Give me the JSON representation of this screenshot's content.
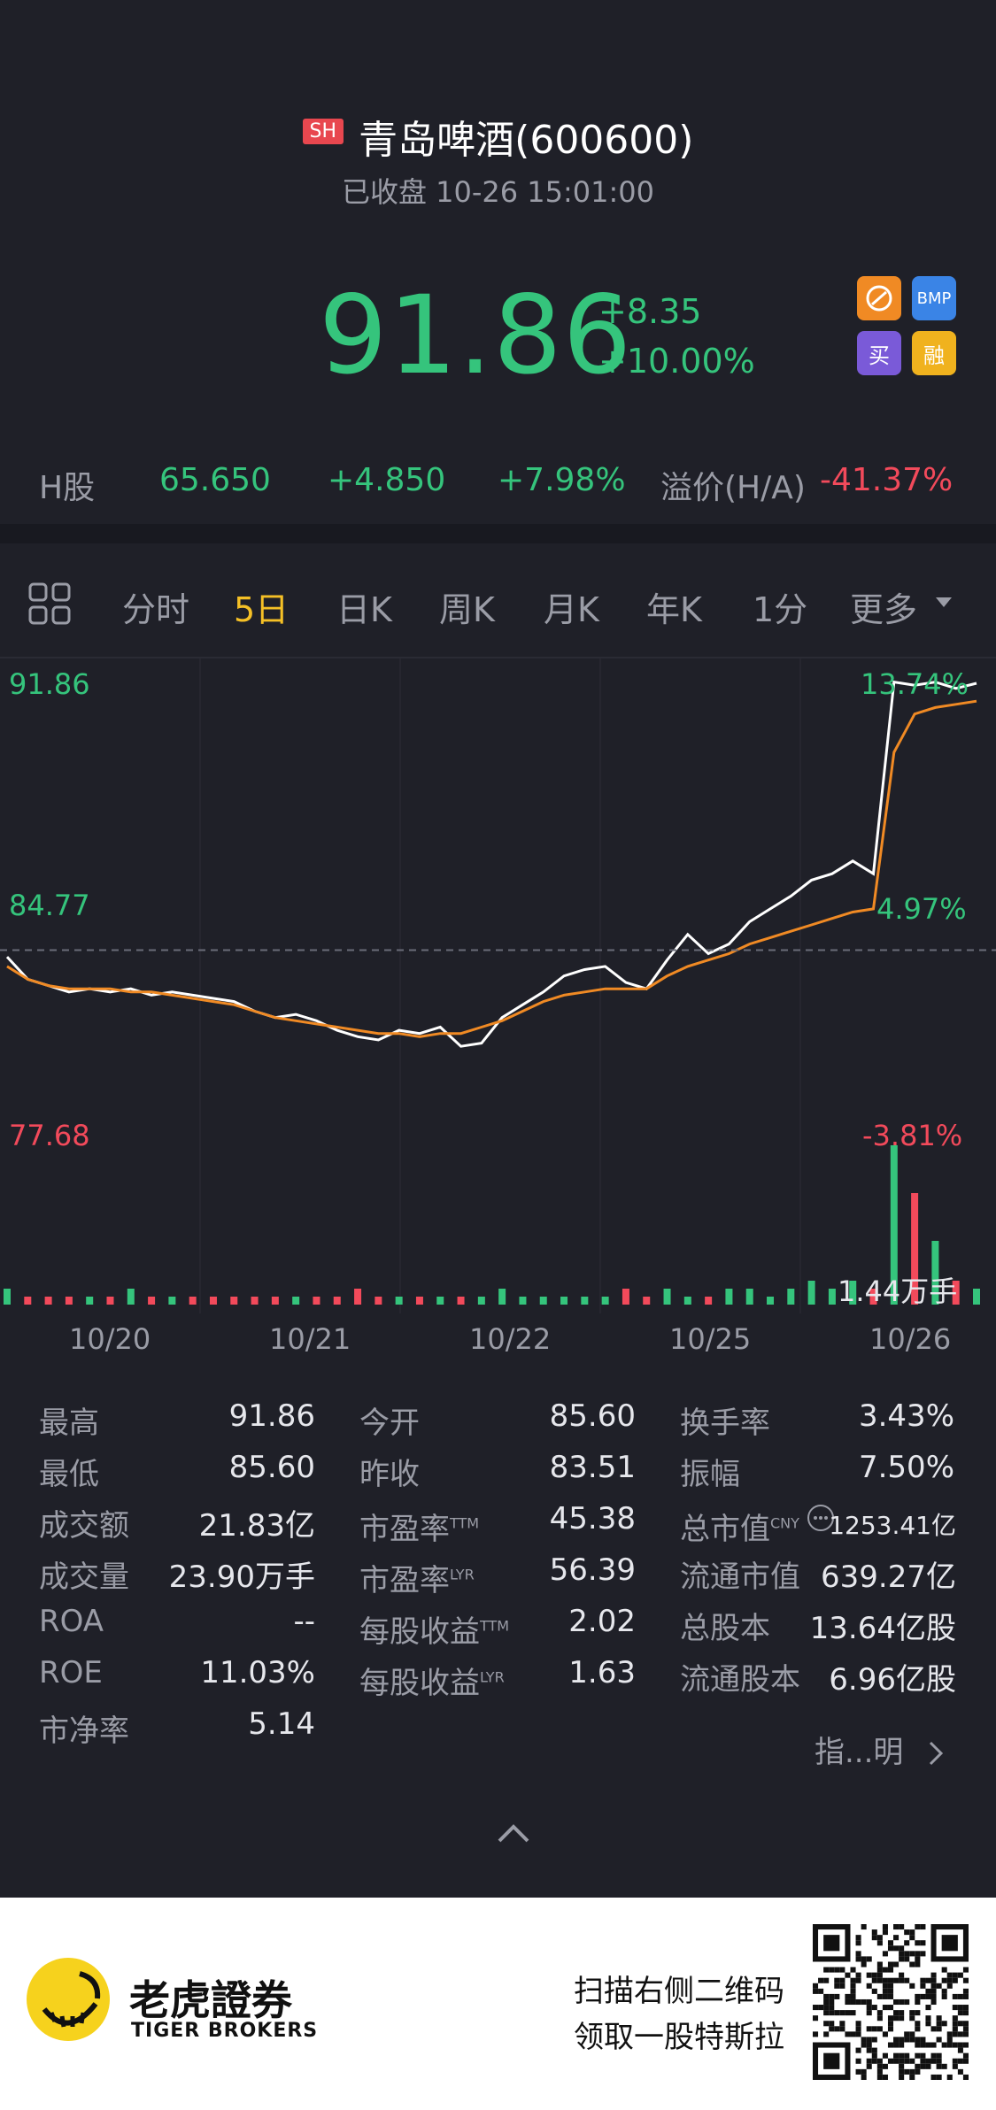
{
  "header": {
    "exchange_badge": "SH",
    "title": "青岛啤酒(600600)",
    "status": "已收盘 10-26 15:01:00",
    "price": "91.86",
    "change_abs": "+8.35",
    "change_pct": "+10.00%",
    "badges": [
      {
        "name": "connect-badge",
        "text": "",
        "color": "#f08a24"
      },
      {
        "name": "bmp-badge",
        "text": "BMP",
        "color": "#3a84e6"
      },
      {
        "name": "buy-badge",
        "text": "买",
        "color": "#7a5ad8"
      },
      {
        "name": "margin-badge",
        "text": "融",
        "color": "#f0b21e"
      }
    ]
  },
  "h_share": {
    "label": "H股",
    "price": "65.650",
    "change_abs": "+4.850",
    "change_pct": "+7.98%",
    "premium_label": "溢价(H/A)",
    "premium_value": "-41.37%"
  },
  "tabs": [
    {
      "label": "分时",
      "active": false
    },
    {
      "label": "5日",
      "active": true
    },
    {
      "label": "日K",
      "active": false
    },
    {
      "label": "周K",
      "active": false
    },
    {
      "label": "月K",
      "active": false
    },
    {
      "label": "年K",
      "active": false
    },
    {
      "label": "1分",
      "active": false
    },
    {
      "label": "更多",
      "active": false
    }
  ],
  "chart_data": {
    "type": "line",
    "y_left_labels": [
      "91.86",
      "84.77",
      "77.68"
    ],
    "y_right_labels": [
      "13.74%",
      "4.97%",
      "-3.81%"
    ],
    "ylim": [
      77.68,
      91.86
    ],
    "prev_close": 83.51,
    "x_labels": [
      "10/20",
      "10/21",
      "10/22",
      "10/25",
      "10/26"
    ],
    "volume_label": "1.44万手",
    "series": [
      {
        "color": "#ffffff",
        "values": [
          83.3,
          82.6,
          82.4,
          82.2,
          82.3,
          82.2,
          82.3,
          82.1,
          82.2,
          82.1,
          82.0,
          81.9,
          81.6,
          81.4,
          81.5,
          81.3,
          81.0,
          80.8,
          80.7,
          81.0,
          80.9,
          81.1,
          80.5,
          80.6,
          81.4,
          81.8,
          82.2,
          82.7,
          82.9,
          83.0,
          82.5,
          82.3,
          83.2,
          84.0,
          83.4,
          83.7,
          84.4,
          84.8,
          85.2,
          85.7,
          85.9,
          86.3,
          85.9,
          91.9,
          91.8,
          91.9,
          91.7,
          91.86
        ]
      },
      {
        "color": "#f08a24",
        "values": [
          83.0,
          82.6,
          82.4,
          82.3,
          82.3,
          82.3,
          82.2,
          82.2,
          82.1,
          82.0,
          81.9,
          81.8,
          81.6,
          81.4,
          81.3,
          81.2,
          81.1,
          81.0,
          80.9,
          80.9,
          80.8,
          80.9,
          80.9,
          81.1,
          81.3,
          81.6,
          81.9,
          82.1,
          82.2,
          82.3,
          82.3,
          82.3,
          82.7,
          83.0,
          83.2,
          83.4,
          83.7,
          83.9,
          84.1,
          84.3,
          84.5,
          84.7,
          84.8,
          89.7,
          90.9,
          91.1,
          91.2,
          91.3
        ]
      }
    ],
    "volume": [
      2,
      1,
      1,
      1,
      1,
      1,
      2,
      1,
      1,
      1,
      1,
      1,
      1,
      1,
      1,
      1,
      1,
      2,
      1,
      1,
      1,
      1,
      1,
      1,
      2,
      1,
      1,
      1,
      1,
      1,
      2,
      1,
      2,
      1,
      1,
      2,
      2,
      1,
      2,
      3,
      2,
      3,
      2,
      20,
      14,
      8,
      3,
      2
    ]
  },
  "stats": {
    "col1": [
      {
        "label": "最高",
        "value": "91.86"
      },
      {
        "label": "最低",
        "value": "85.60"
      },
      {
        "label": "成交额",
        "value": "21.83亿"
      },
      {
        "label": "成交量",
        "value": "23.90万手"
      },
      {
        "label": "ROA",
        "value": "--"
      },
      {
        "label": "ROE",
        "value": "11.03%"
      },
      {
        "label": "市净率",
        "value": "5.14"
      }
    ],
    "col2": [
      {
        "label": "今开",
        "sup": "",
        "value": "85.60"
      },
      {
        "label": "昨收",
        "sup": "",
        "value": "83.51"
      },
      {
        "label": "市盈率",
        "sup": "TTM",
        "value": "45.38"
      },
      {
        "label": "市盈率",
        "sup": "LYR",
        "value": "56.39"
      },
      {
        "label": "每股收益",
        "sup": "TTM",
        "value": "2.02"
      },
      {
        "label": "每股收益",
        "sup": "LYR",
        "value": "1.63"
      }
    ],
    "col3": [
      {
        "label": "换手率",
        "sup": "",
        "value": "3.43%"
      },
      {
        "label": "振幅",
        "sup": "",
        "value": "7.50%"
      },
      {
        "label": "总市值",
        "sup": "CNY",
        "value": "1253.41亿"
      },
      {
        "label": "流通市值",
        "sup": "",
        "value": "639.27亿"
      },
      {
        "label": "总股本",
        "sup": "",
        "value": "13.64亿股"
      },
      {
        "label": "流通股本",
        "sup": "",
        "value": "6.96亿股"
      }
    ],
    "indicator_link": "指...明"
  },
  "footer": {
    "logo_cn": "老虎證券",
    "logo_en": "TIGER BROKERS",
    "promo_line1": "扫描右侧二维码",
    "promo_line2": "领取一股特斯拉"
  }
}
